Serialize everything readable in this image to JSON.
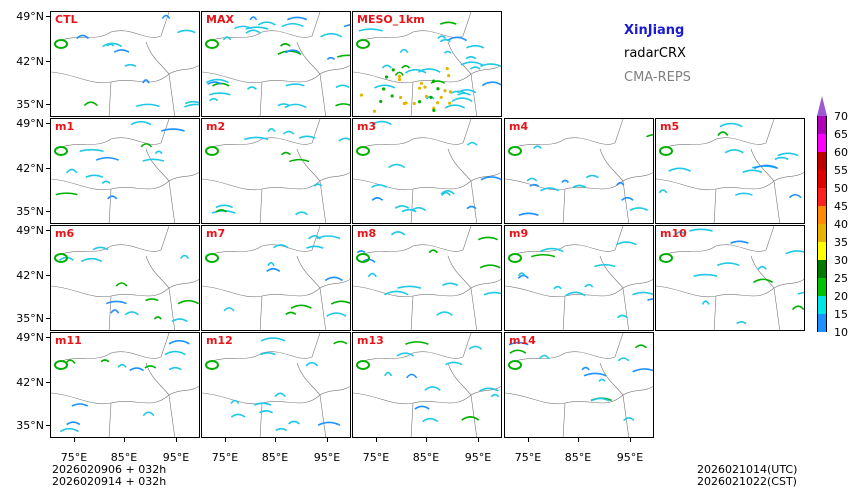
{
  "legend": {
    "region": "XinJiang",
    "product": "radarCRX",
    "system": "CMA-REPS",
    "region_color": "#1a1ad6",
    "system_color": "#808080"
  },
  "panels": [
    "CTL",
    "MAX",
    "MESO_1km",
    "m1",
    "m2",
    "m3",
    "m4",
    "m5",
    "m6",
    "m7",
    "m8",
    "m9",
    "m10",
    "m11",
    "m12",
    "m13",
    "m14"
  ],
  "lat_labels": [
    "49°N",
    "42°N",
    "35°N"
  ],
  "lon_labels": [
    "75°E",
    "85°E",
    "95°E"
  ],
  "colorbar": {
    "labels": [
      "70",
      "65",
      "60",
      "55",
      "50",
      "45",
      "40",
      "35",
      "30",
      "25",
      "20",
      "15",
      "10"
    ],
    "colors": [
      "#9c5ad2",
      "#b000b8",
      "#ff00ff",
      "#c00000",
      "#e00000",
      "#ff2020",
      "#ff8c00",
      "#e6b400",
      "#ffff00",
      "#007a00",
      "#00c000",
      "#00e6e6",
      "#1e90ff"
    ]
  },
  "footer": {
    "init_line1": "2026020906  +  032h",
    "init_line2": "2026020914  +  032h",
    "valid_utc": "2026021014(UTC)",
    "valid_cst": "2026021022(CST)"
  }
}
